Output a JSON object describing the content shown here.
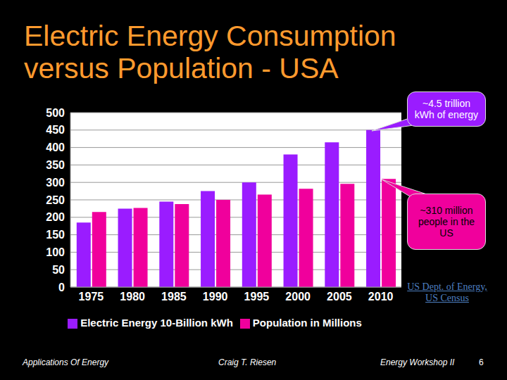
{
  "chart_data": {
    "type": "bar",
    "title": "Electric Energy Consumption versus Population - USA",
    "categories": [
      "1975",
      "1980",
      "1985",
      "1990",
      "1995",
      "2000",
      "2005",
      "2010"
    ],
    "series": [
      {
        "name": "Electric Energy 10-Billion kWh",
        "color": "#9a1cff",
        "values": [
          185,
          225,
          245,
          275,
          300,
          380,
          415,
          450
        ]
      },
      {
        "name": "Population in Millions",
        "color": "#f0009c",
        "values": [
          215,
          227,
          238,
          250,
          265,
          282,
          296,
          310
        ]
      }
    ],
    "ylim": [
      0,
      500
    ],
    "yticks": [
      0,
      50,
      100,
      150,
      200,
      250,
      300,
      350,
      400,
      450,
      500
    ],
    "grid": true,
    "legend": "bottom",
    "annotations": [
      "~4.5 trillion kWh of energy",
      "~310 million people in the US"
    ],
    "source": "US Dept. of Energy, US Census",
    "footer": [
      "Applications Of Energy",
      "Craig T. Riesen",
      "Energy Workshop II"
    ],
    "page": 6
  }
}
